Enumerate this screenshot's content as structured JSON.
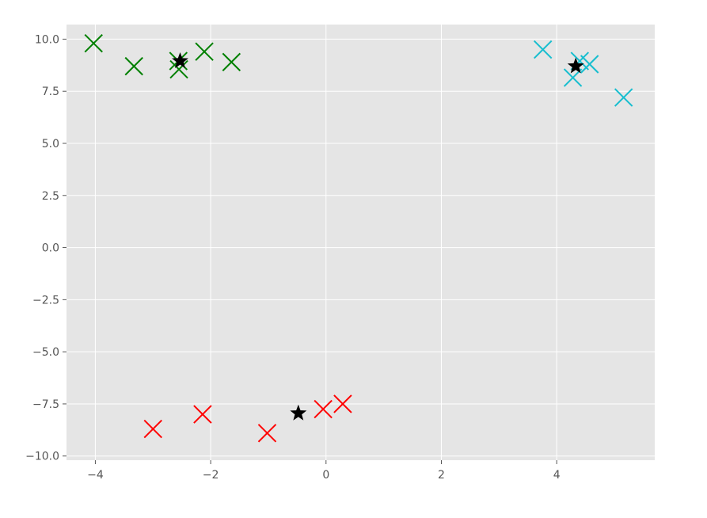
{
  "chart_data": {
    "type": "scatter",
    "xlim": [
      -4.5,
      5.7
    ],
    "ylim": [
      -10.2,
      10.7
    ],
    "x_ticks": [
      -4,
      -2,
      0,
      2,
      4
    ],
    "x_tick_labels": [
      "−4",
      "−2",
      "0",
      "2",
      "4"
    ],
    "y_ticks": [
      10,
      7.5,
      5,
      2.5,
      0,
      -2.5,
      -5,
      -7.5,
      -10
    ],
    "y_tick_labels": [
      "10.0",
      "7.5",
      "5.0",
      "2.5",
      "0.0",
      "−2.5",
      "−5.0",
      "−7.5",
      "−10.0"
    ],
    "grid": true,
    "series": [
      {
        "marker": "x",
        "color": "#008000",
        "points": [
          [
            -4.03,
            9.8
          ],
          [
            -3.33,
            8.7
          ],
          [
            -2.55,
            8.55
          ],
          [
            -2.56,
            8.95
          ],
          [
            -2.11,
            9.4
          ],
          [
            -1.64,
            8.9
          ]
        ]
      },
      {
        "marker": "x",
        "color": "#17becf",
        "points": [
          [
            3.76,
            9.5
          ],
          [
            4.28,
            8.15
          ],
          [
            4.4,
            8.95
          ],
          [
            4.57,
            8.8
          ],
          [
            5.16,
            7.2
          ]
        ]
      },
      {
        "marker": "x",
        "color": "#ff0000",
        "points": [
          [
            -3.0,
            -8.7
          ],
          [
            -2.14,
            -8.0
          ],
          [
            -1.02,
            -8.9
          ],
          [
            -0.05,
            -7.75
          ],
          [
            0.29,
            -7.5
          ]
        ]
      },
      {
        "marker": "star",
        "color": "#000000",
        "points": [
          [
            -2.53,
            8.95
          ],
          [
            4.33,
            8.7
          ],
          [
            -0.48,
            -7.95
          ]
        ]
      }
    ]
  }
}
